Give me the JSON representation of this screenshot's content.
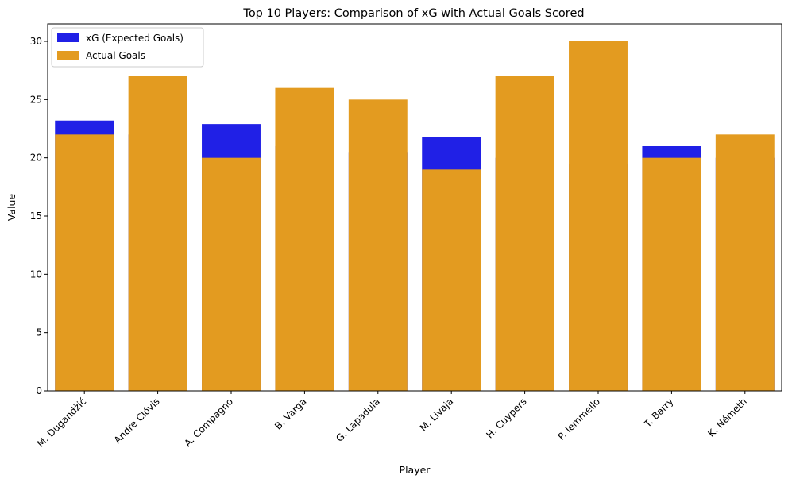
{
  "chart_data": {
    "type": "bar",
    "title": "Top 10 Players: Comparison of xG with Actual Goals Scored",
    "xlabel": "Player",
    "ylabel": "Value",
    "categories": [
      "M. Dugandžić",
      "Andre Clóvis",
      "A. Compagno",
      "B. Varga",
      "G. Lapadula",
      "M. Livaja",
      "H. Cuypers",
      "P. Iemmello",
      "T. Barry",
      "K. Németh"
    ],
    "series": [
      {
        "name": "xG (Expected Goals)",
        "color": "#2020e6",
        "values": [
          23.2,
          22.0,
          22.9,
          21.0,
          20.5,
          21.8,
          20.0,
          19.5,
          21.0,
          20.0
        ]
      },
      {
        "name": "Actual Goals",
        "color": "#e39b20",
        "values": [
          22,
          27,
          20,
          26,
          25,
          19,
          27,
          30,
          20,
          22
        ]
      }
    ],
    "ylim": [
      0,
      31.5
    ],
    "yticks": [
      0,
      5,
      10,
      15,
      20,
      25,
      30
    ],
    "grid": false,
    "legend_position": "top-left"
  }
}
